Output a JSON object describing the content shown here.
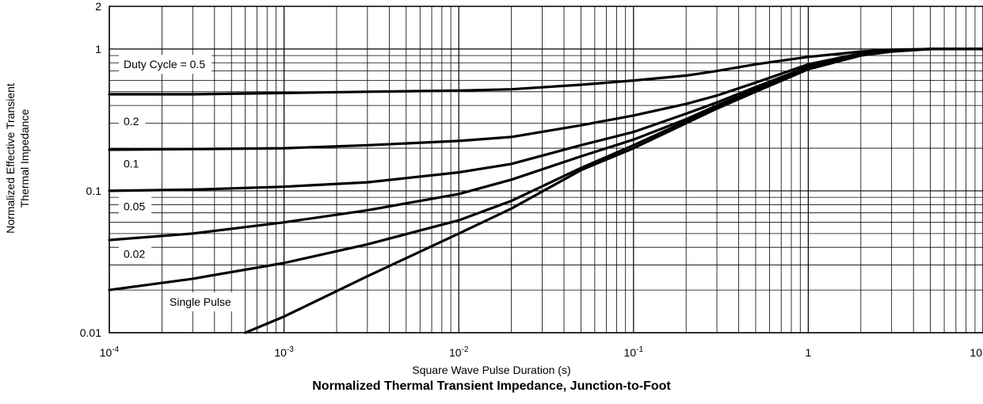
{
  "chart_data": {
    "type": "line",
    "title": "Normalized Thermal Transient Impedance, Junction-to-Foot",
    "xlabel": "Square Wave Pulse Duration (s)",
    "ylabel_lines": [
      "Normalized Effective Transient",
      "Thermal Impedance"
    ],
    "x_scale": "log",
    "y_scale": "log",
    "xlim": [
      0.0001,
      10
    ],
    "ylim": [
      0.01,
      2
    ],
    "grid": true,
    "x_ticks": [
      {
        "value": 0.0001,
        "base": "10",
        "exp": "-4"
      },
      {
        "value": 0.001,
        "base": "10",
        "exp": "-3"
      },
      {
        "value": 0.01,
        "base": "10",
        "exp": "-2"
      },
      {
        "value": 0.1,
        "base": "10",
        "exp": "-1"
      },
      {
        "value": 1,
        "base": "1",
        "exp": ""
      },
      {
        "value": 10,
        "base": "10",
        "exp": ""
      }
    ],
    "y_ticks": [
      {
        "value": 2,
        "label": "2"
      },
      {
        "value": 1,
        "label": "1"
      },
      {
        "value": 0.1,
        "label": "0.1"
      },
      {
        "value": 0.01,
        "label": "0.01"
      }
    ],
    "series": [
      {
        "name": "Duty Cycle = 0.5",
        "x": [
          0.0001,
          0.0003,
          0.001,
          0.003,
          0.01,
          0.02,
          0.05,
          0.1,
          0.2,
          0.3,
          0.5,
          1,
          2,
          3,
          5,
          10
        ],
        "y": [
          0.48,
          0.48,
          0.49,
          0.5,
          0.51,
          0.52,
          0.56,
          0.6,
          0.65,
          0.7,
          0.78,
          0.88,
          0.96,
          0.99,
          1,
          1
        ]
      },
      {
        "name": "0.2",
        "x": [
          0.0001,
          0.0003,
          0.001,
          0.003,
          0.01,
          0.02,
          0.05,
          0.1,
          0.2,
          0.3,
          0.5,
          1,
          2,
          3,
          5,
          10
        ],
        "y": [
          0.195,
          0.197,
          0.2,
          0.21,
          0.225,
          0.24,
          0.29,
          0.34,
          0.41,
          0.47,
          0.58,
          0.78,
          0.93,
          0.98,
          1,
          1
        ]
      },
      {
        "name": "0.1",
        "x": [
          0.0001,
          0.0003,
          0.001,
          0.003,
          0.01,
          0.02,
          0.05,
          0.1,
          0.2,
          0.3,
          0.5,
          1,
          2,
          3,
          5,
          10
        ],
        "y": [
          0.1,
          0.102,
          0.107,
          0.115,
          0.135,
          0.155,
          0.21,
          0.26,
          0.35,
          0.42,
          0.54,
          0.75,
          0.92,
          0.98,
          1,
          1
        ]
      },
      {
        "name": "0.05",
        "x": [
          0.0001,
          0.0003,
          0.001,
          0.003,
          0.01,
          0.02,
          0.05,
          0.1,
          0.2,
          0.3,
          0.5,
          1,
          2,
          3,
          5,
          10
        ],
        "y": [
          0.045,
          0.05,
          0.06,
          0.073,
          0.095,
          0.12,
          0.175,
          0.23,
          0.32,
          0.4,
          0.52,
          0.74,
          0.91,
          0.97,
          1,
          1
        ]
      },
      {
        "name": "0.02",
        "x": [
          0.0001,
          0.0003,
          0.001,
          0.003,
          0.01,
          0.02,
          0.05,
          0.1,
          0.2,
          0.3,
          0.5,
          1,
          2,
          3,
          5,
          10
        ],
        "y": [
          0.02,
          0.024,
          0.031,
          0.042,
          0.062,
          0.085,
          0.145,
          0.21,
          0.31,
          0.39,
          0.51,
          0.73,
          0.9,
          0.97,
          1,
          1
        ]
      },
      {
        "name": "Single Pulse",
        "x": [
          0.0006,
          0.001,
          0.003,
          0.01,
          0.02,
          0.05,
          0.1,
          0.2,
          0.3,
          0.5,
          1,
          2,
          3,
          5,
          10
        ],
        "y": [
          0.01,
          0.013,
          0.025,
          0.05,
          0.075,
          0.14,
          0.2,
          0.3,
          0.38,
          0.5,
          0.72,
          0.9,
          0.96,
          1,
          1
        ]
      }
    ],
    "series_labels": [
      "Duty Cycle = 0.5",
      "0.2",
      "0.1",
      "0.05",
      "0.02",
      "Single Pulse"
    ]
  }
}
